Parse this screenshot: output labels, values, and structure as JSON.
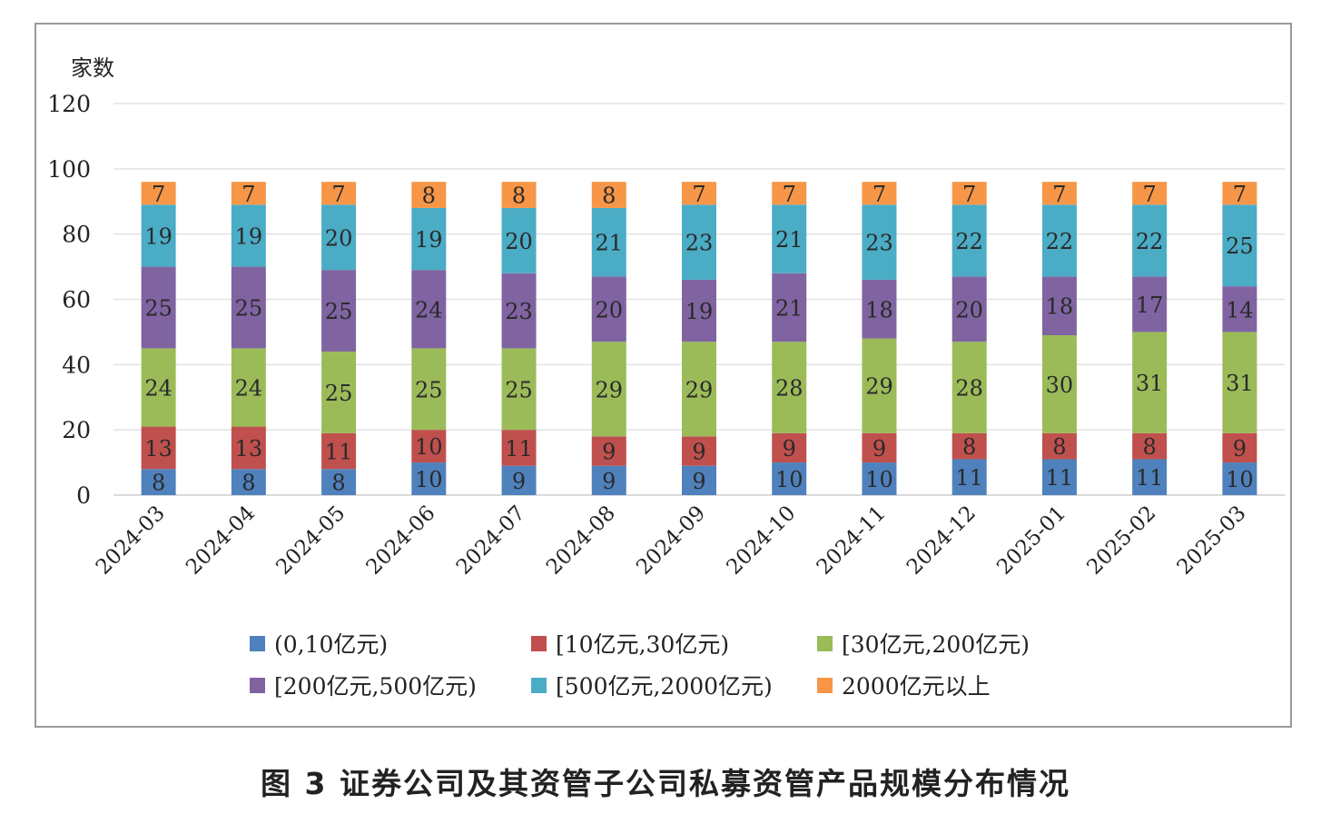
{
  "caption": "图 3   证券公司及其资管子公司私募资管产品规模分布情况",
  "chart_data": {
    "type": "bar",
    "stacked": true,
    "ylabel": "家数",
    "ylim": [
      0,
      120
    ],
    "yticks": [
      0,
      20,
      40,
      60,
      80,
      100,
      120
    ],
    "grid": true,
    "legend_position": "bottom",
    "categories": [
      "2024-03",
      "2024-04",
      "2024-05",
      "2024-06",
      "2024-07",
      "2024-08",
      "2024-09",
      "2024-10",
      "2024-11",
      "2024-12",
      "2025-01",
      "2025-02",
      "2025-03"
    ],
    "series": [
      {
        "name": "(0,10亿元)",
        "color": "#4f81bd",
        "values": [
          8,
          8,
          8,
          10,
          9,
          9,
          9,
          10,
          10,
          11,
          11,
          11,
          10
        ]
      },
      {
        "name": "[10亿元,30亿元)",
        "color": "#c0504d",
        "values": [
          13,
          13,
          11,
          10,
          11,
          9,
          9,
          9,
          9,
          8,
          8,
          8,
          9
        ]
      },
      {
        "name": "[30亿元,200亿元)",
        "color": "#9bbb59",
        "values": [
          24,
          24,
          25,
          25,
          25,
          29,
          29,
          28,
          29,
          28,
          30,
          31,
          31
        ]
      },
      {
        "name": "[200亿元,500亿元)",
        "color": "#8064a2",
        "values": [
          25,
          25,
          25,
          24,
          23,
          20,
          19,
          21,
          18,
          20,
          18,
          17,
          14
        ]
      },
      {
        "name": "[500亿元,2000亿元)",
        "color": "#4bacc6",
        "values": [
          19,
          19,
          20,
          19,
          20,
          21,
          23,
          21,
          23,
          22,
          22,
          22,
          25
        ]
      },
      {
        "name": "2000亿元以上",
        "color": "#f79646",
        "values": [
          7,
          7,
          7,
          8,
          8,
          8,
          7,
          7,
          7,
          7,
          7,
          7,
          7
        ]
      }
    ]
  }
}
